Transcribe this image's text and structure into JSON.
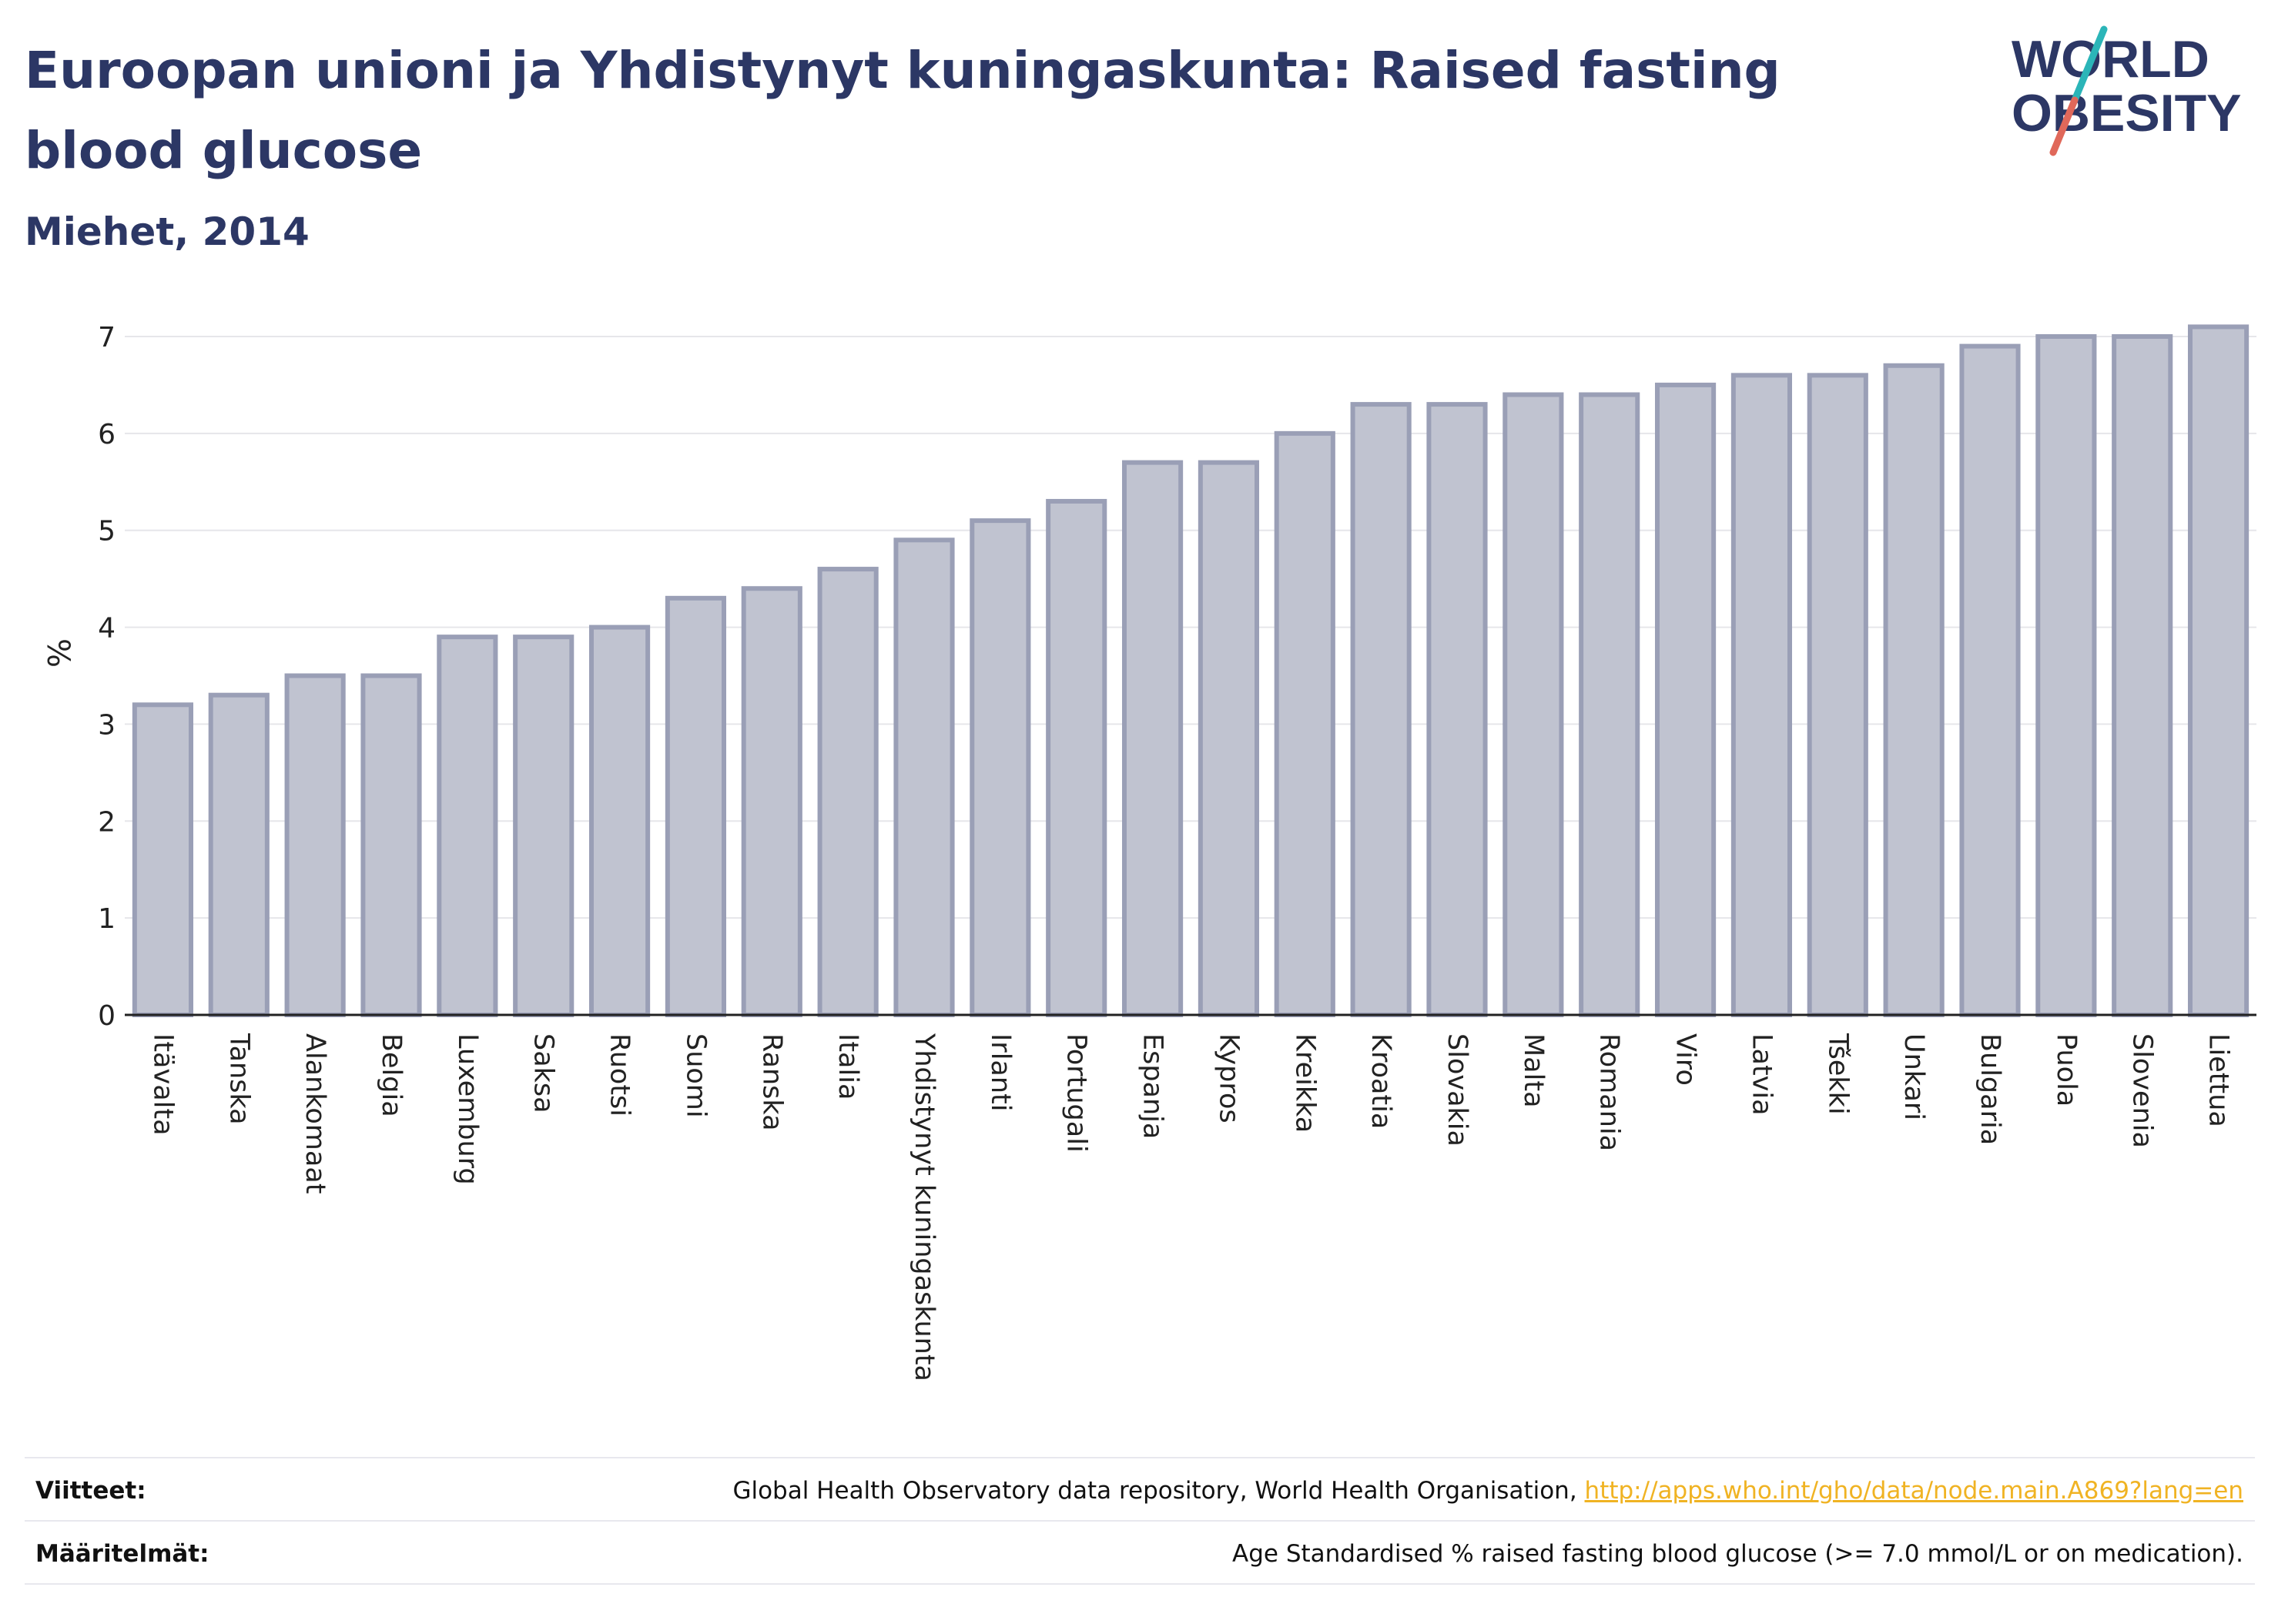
{
  "header": {
    "title": "Euroopan unioni ja Yhdistynyt kuningaskunta: Raised fasting blood glucose",
    "subtitle": "Miehet, 2014"
  },
  "logo": {
    "line1": "WORLD",
    "line2": "OBESITY",
    "colors": {
      "text": "#2c3765",
      "slash_red": "#e0685a",
      "slash_teal": "#2bb5b8"
    }
  },
  "chart_data": {
    "type": "bar",
    "title": "Euroopan unioni ja Yhdistynyt kuningaskunta: Raised fasting blood glucose",
    "subtitle": "Miehet, 2014",
    "xlabel": "",
    "ylabel": "%",
    "ylim": [
      0,
      7.2
    ],
    "yticks": [
      0,
      1,
      2,
      3,
      4,
      5,
      6,
      7
    ],
    "grid": true,
    "bar_color": "#c0c3d0",
    "bar_border": "#9a9fb6",
    "categories": [
      "Itävalta",
      "Tanska",
      "Alankomaat",
      "Belgia",
      "Luxemburg",
      "Saksa",
      "Ruotsi",
      "Suomi",
      "Ranska",
      "Italia",
      "Yhdistynyt kuningaskunta",
      "Irlanti",
      "Portugali",
      "Espanja",
      "Kypros",
      "Kreikka",
      "Kroatia",
      "Slovakia",
      "Malta",
      "Romania",
      "Viro",
      "Latvia",
      "Tšekki",
      "Unkari",
      "Bulgaria",
      "Puola",
      "Slovenia",
      "Liettua"
    ],
    "values": [
      3.2,
      3.3,
      3.5,
      3.5,
      3.9,
      3.9,
      4.0,
      4.3,
      4.4,
      4.6,
      4.9,
      5.1,
      5.3,
      5.7,
      5.7,
      6.0,
      6.3,
      6.3,
      6.4,
      6.4,
      6.5,
      6.6,
      6.6,
      6.7,
      6.9,
      7.0,
      7.0,
      7.1
    ]
  },
  "footer": {
    "sources_label": "Viitteet:",
    "sources_text": "Global Health Observatory data repository, World Health Organisation, ",
    "sources_link": "http://apps.who.int/gho/data/node.main.A869?lang=en",
    "definitions_label": "Määritelmät:",
    "definitions_text": "Age Standardised % raised fasting blood glucose (>= 7.0 mmol/L or on medication)."
  }
}
